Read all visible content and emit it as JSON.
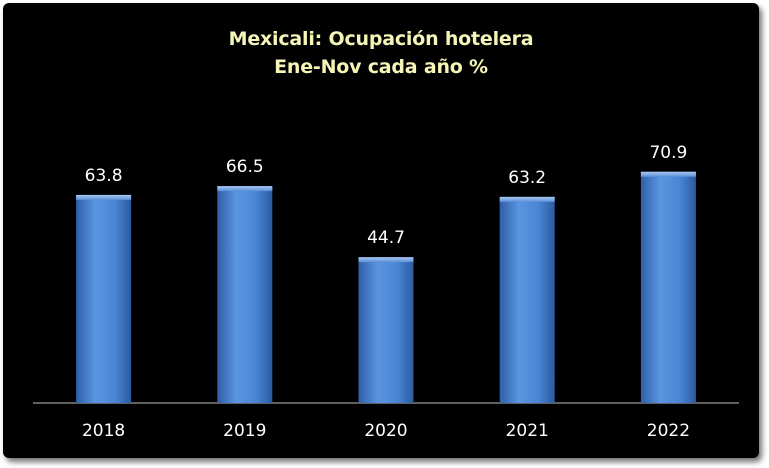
{
  "chart_data": {
    "type": "bar",
    "title": "Mexicali: Ocupación hotelera",
    "subtitle": "Ene-Nov cada año %",
    "categories": [
      "2018",
      "2019",
      "2020",
      "2021",
      "2022"
    ],
    "values": [
      63.8,
      66.5,
      44.7,
      63.2,
      70.9
    ],
    "value_labels": [
      "63.8",
      "66.5",
      "44.7",
      "63.2",
      "70.9"
    ],
    "xlabel": "",
    "ylabel": "",
    "ylim": [
      0,
      88
    ],
    "grid": false,
    "legend": "none",
    "bar_color": "#4a86d6",
    "background_color": "#000000",
    "title_color": "#f5f5b8"
  }
}
